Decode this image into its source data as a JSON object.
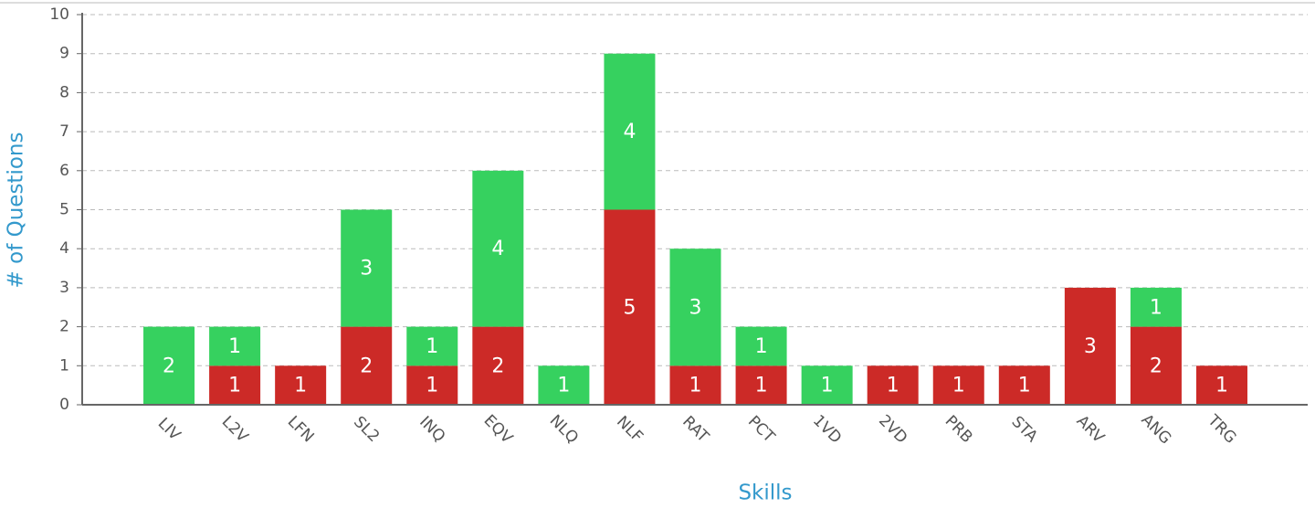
{
  "chart_data": {
    "type": "stacked_bar",
    "x_label": "Skills",
    "y_label": "# of Questions",
    "categories": [
      "LIV",
      "L2V",
      "LFN",
      "SL2",
      "INQ",
      "EQV",
      "NLQ",
      "NLF",
      "RAT",
      "PCT",
      "1VD",
      "2VD",
      "PRB",
      "STA",
      "ARV",
      "ANG",
      "TRG"
    ],
    "series": [
      {
        "color": "#cc2a27",
        "values": [
          null,
          1,
          1,
          2,
          1,
          2,
          null,
          5,
          1,
          1,
          null,
          1,
          1,
          1,
          3,
          2,
          1
        ]
      },
      {
        "color": "#36d15f",
        "values": [
          2,
          1,
          null,
          3,
          1,
          4,
          1,
          4,
          3,
          1,
          1,
          null,
          null,
          null,
          null,
          1,
          null
        ]
      }
    ],
    "ylim": [
      0,
      10
    ],
    "yticks": [
      0,
      1,
      2,
      3,
      4,
      5,
      6,
      7,
      8,
      9,
      10
    ],
    "grid": true
  }
}
